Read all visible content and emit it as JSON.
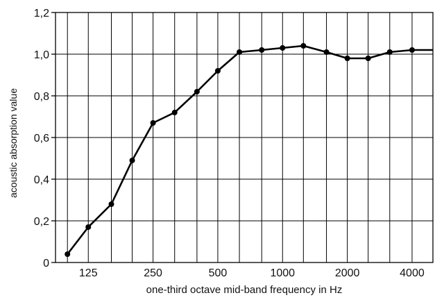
{
  "chart_data": {
    "type": "line",
    "title": "",
    "xlabel": "one-third octave mid-band frequency in Hz",
    "ylabel": "acoustic absorption value",
    "x_scale": "log",
    "xlim": [
      88,
      5000
    ],
    "ylim": [
      0,
      1.2
    ],
    "grid": true,
    "legend": "none",
    "line_color": "#000000",
    "grid_color": "#000000",
    "x_ticks": [
      100,
      125,
      160,
      200,
      250,
      315,
      400,
      500,
      630,
      800,
      1000,
      1250,
      1600,
      2000,
      2500,
      3150,
      4000,
      5000
    ],
    "x_tick_labels": [
      {
        "value": 125,
        "label": "125"
      },
      {
        "value": 250,
        "label": "250"
      },
      {
        "value": 500,
        "label": "500"
      },
      {
        "value": 1000,
        "label": "1000"
      },
      {
        "value": 2000,
        "label": "2000"
      },
      {
        "value": 4000,
        "label": "4000"
      }
    ],
    "y_ticks": [
      {
        "value": 0,
        "label": "0"
      },
      {
        "value": 0.2,
        "label": "0,2"
      },
      {
        "value": 0.4,
        "label": "0,4"
      },
      {
        "value": 0.6,
        "label": "0,6"
      },
      {
        "value": 0.8,
        "label": "0,8"
      },
      {
        "value": 1.0,
        "label": "1,0"
      },
      {
        "value": 1.2,
        "label": "1,2"
      }
    ],
    "series": [
      {
        "x": [
          100,
          125,
          160,
          200,
          250,
          315,
          400,
          500,
          630,
          800,
          1000,
          1250,
          1600,
          2000,
          2500,
          3150,
          4000,
          5000
        ],
        "y": [
          0.04,
          0.17,
          0.28,
          0.49,
          0.67,
          0.72,
          0.82,
          0.92,
          1.01,
          1.02,
          1.03,
          1.04,
          1.01,
          0.98,
          0.98,
          1.01,
          1.02,
          1.02
        ],
        "markers": [
          true,
          true,
          true,
          true,
          true,
          true,
          true,
          true,
          true,
          true,
          true,
          true,
          true,
          true,
          true,
          true,
          true,
          false
        ]
      }
    ]
  }
}
